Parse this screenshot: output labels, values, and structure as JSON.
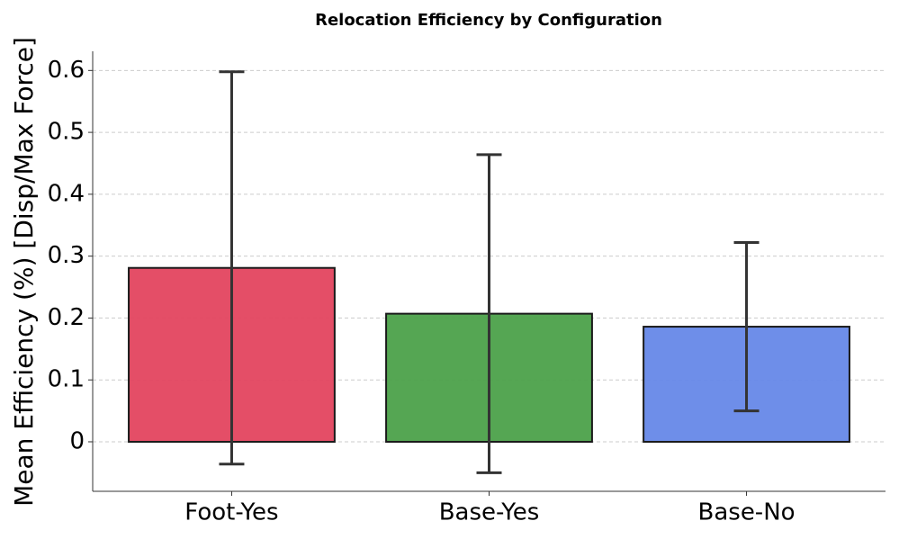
{
  "chart_data": {
    "type": "bar",
    "title": "Relocation Efficiency by Configuration",
    "y_label": "Mean Efficiency (%) [Disp/Max Force]",
    "categories": [
      "Foot-Yes",
      "Base-Yes",
      "Base-No"
    ],
    "values": [
      0.281,
      0.207,
      0.186
    ],
    "errors": [
      0.317,
      0.257,
      0.136
    ],
    "colors": [
      "#e3445f",
      "#4ca14a",
      "#6688e8"
    ],
    "ylim": [
      -0.08,
      0.631
    ],
    "yticks": [
      0.0,
      0.1,
      0.2,
      0.3,
      0.4,
      0.5,
      0.6
    ],
    "grid": true
  }
}
